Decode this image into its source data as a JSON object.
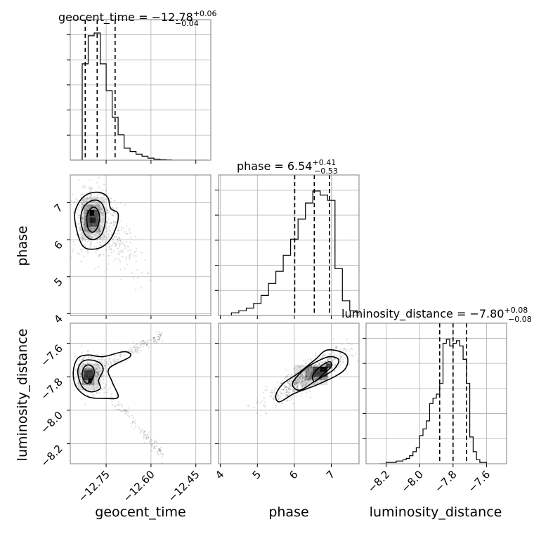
{
  "chart_data": {
    "type": "corner",
    "parameters": [
      "geocent_time",
      "phase",
      "luminosity_distance"
    ],
    "titles": [
      {
        "param": "geocent_time",
        "prefix": "geocent_time = −12.78",
        "upper": "+0.06",
        "lower": "−0.04"
      },
      {
        "param": "phase",
        "prefix": "phase = 6.54",
        "upper": "+0.41",
        "lower": "−0.53"
      },
      {
        "param": "luminosity_distance",
        "prefix": "luminosity_distance = −7.80",
        "upper": "+0.08",
        "lower": "−0.08"
      }
    ],
    "axis_labels": {
      "geocent_time": "geocent_time",
      "phase": "phase",
      "luminosity_distance": "luminosity_distance"
    },
    "ranges": {
      "geocent_time": [
        -12.87,
        -12.4
      ],
      "phase": [
        3.95,
        7.75
      ],
      "luminosity_distance": [
        -8.32,
        -7.48
      ]
    },
    "ticks": {
      "geocent_time": {
        "values": [
          -12.75,
          -12.6,
          -12.45
        ],
        "labels": [
          "−12.75",
          "−12.60",
          "−12.45"
        ]
      },
      "phase": {
        "values": [
          4,
          5,
          6,
          7
        ],
        "labels": [
          "4",
          "5",
          "6",
          "7"
        ]
      },
      "luminosity_distance": {
        "values": [
          -8.2,
          -8.0,
          -7.8,
          -7.6
        ],
        "labels": [
          "−8.2",
          "−8.0",
          "−7.8",
          "−7.6"
        ]
      }
    },
    "quantiles": {
      "geocent_time": [
        -12.82,
        -12.78,
        -12.72
      ],
      "phase": [
        6.01,
        6.54,
        6.95
      ],
      "luminosity_distance": [
        -7.88,
        -7.8,
        -7.72
      ]
    },
    "hist_1d": {
      "geocent_time": {
        "edges": [
          -12.87,
          -12.85,
          -12.83,
          -12.81,
          -12.79,
          -12.77,
          -12.75,
          -12.73,
          -12.71,
          -12.69,
          -12.67,
          -12.65,
          -12.63,
          -12.61,
          -12.59,
          -12.57,
          -12.55,
          -12.53,
          -12.51,
          -12.49,
          -12.47,
          -12.45,
          -12.43,
          -12.41
        ],
        "counts": [
          0,
          0,
          0.72,
          0.93,
          0.95,
          0.72,
          0.52,
          0.32,
          0.19,
          0.09,
          0.065,
          0.045,
          0.03,
          0.015,
          0.008,
          0.004,
          0.002,
          0,
          0,
          0,
          0,
          0,
          0
        ]
      },
      "phase": {
        "edges": [
          4.3,
          4.5,
          4.7,
          4.9,
          5.1,
          5.3,
          5.5,
          5.7,
          5.9,
          6.1,
          6.3,
          6.5,
          6.7,
          6.9,
          7.1,
          7.3,
          7.5,
          7.7
        ],
        "counts": [
          0.02,
          0.035,
          0.055,
          0.09,
          0.15,
          0.24,
          0.33,
          0.45,
          0.57,
          0.72,
          0.84,
          0.93,
          0.9,
          0.86,
          0.35,
          0.11,
          0.035
        ]
      },
      "luminosity_distance": {
        "edges": [
          -8.24,
          -8.22,
          -8.2,
          -8.18,
          -8.16,
          -8.14,
          -8.12,
          -8.1,
          -8.08,
          -8.06,
          -8.04,
          -8.02,
          -8.0,
          -7.98,
          -7.96,
          -7.94,
          -7.92,
          -7.9,
          -7.88,
          -7.86,
          -7.84,
          -7.82,
          -7.8,
          -7.78,
          -7.76,
          -7.74,
          -7.72,
          -7.7,
          -7.68,
          -7.66,
          -7.64,
          -7.62,
          -7.6
        ],
        "counts": [
          0,
          0,
          0.01,
          0.01,
          0.01,
          0.02,
          0.02,
          0.03,
          0.04,
          0.06,
          0.09,
          0.12,
          0.21,
          0.26,
          0.32,
          0.45,
          0.49,
          0.52,
          0.6,
          0.9,
          0.93,
          0.88,
          0.9,
          0.92,
          0.88,
          0.78,
          0.6,
          0.2,
          0.09,
          0.03,
          0.01,
          0.01
        ]
      }
    },
    "hist_2d": {
      "geocent_time_vs_phase": {
        "center": [
          -12.795,
          6.55
        ],
        "contours": [
          [
            [
              -12.815,
              6.58
            ],
            [
              -12.808,
              6.78
            ],
            [
              -12.792,
              6.88
            ],
            [
              -12.778,
              6.8
            ],
            [
              -12.772,
              6.58
            ],
            [
              -12.78,
              6.32
            ],
            [
              -12.795,
              6.2
            ],
            [
              -12.81,
              6.3
            ]
          ],
          [
            [
              -12.835,
              6.55
            ],
            [
              -12.825,
              6.88
            ],
            [
              -12.8,
              7.05
            ],
            [
              -12.775,
              7.05
            ],
            [
              -12.758,
              6.88
            ],
            [
              -12.752,
              6.55
            ],
            [
              -12.765,
              6.15
            ],
            [
              -12.795,
              6.0
            ],
            [
              -12.822,
              6.15
            ]
          ],
          [
            [
              -12.855,
              6.55
            ],
            [
              -12.845,
              6.95
            ],
            [
              -12.815,
              7.22
            ],
            [
              -12.775,
              7.28
            ],
            [
              -12.745,
              7.15
            ],
            [
              -12.735,
              6.85
            ],
            [
              -12.71,
              6.7
            ],
            [
              -12.718,
              6.3
            ],
            [
              -12.745,
              5.92
            ],
            [
              -12.785,
              5.75
            ],
            [
              -12.83,
              5.85
            ]
          ]
        ]
      },
      "geocent_time_vs_luminosity_distance": {
        "contours": [
          [
            [
              -12.83,
              -7.78
            ],
            [
              -12.822,
              -7.74
            ],
            [
              -12.805,
              -7.73
            ],
            [
              -12.79,
              -7.76
            ],
            [
              -12.795,
              -7.81
            ],
            [
              -12.812,
              -7.84
            ],
            [
              -12.825,
              -7.82
            ]
          ],
          [
            [
              -12.845,
              -7.77
            ],
            [
              -12.83,
              -7.71
            ],
            [
              -12.8,
              -7.7
            ],
            [
              -12.77,
              -7.72
            ],
            [
              -12.76,
              -7.76
            ],
            [
              -12.775,
              -7.82
            ],
            [
              -12.77,
              -7.87
            ],
            [
              -12.8,
              -7.89
            ],
            [
              -12.83,
              -7.86
            ]
          ],
          [
            [
              -12.86,
              -7.77
            ],
            [
              -12.845,
              -7.69
            ],
            [
              -12.81,
              -7.67
            ],
            [
              -12.76,
              -7.68
            ],
            [
              -12.69,
              -7.65
            ],
            [
              -12.67,
              -7.68
            ],
            [
              -12.74,
              -7.75
            ],
            [
              -12.73,
              -7.83
            ],
            [
              -12.71,
              -7.92
            ],
            [
              -12.75,
              -7.93
            ],
            [
              -12.81,
              -7.92
            ],
            [
              -12.85,
              -7.86
            ]
          ]
        ]
      },
      "phase_vs_luminosity_distance": {
        "contours": [
          [
            [
              6.5,
              -7.79
            ],
            [
              6.7,
              -7.74
            ],
            [
              6.95,
              -7.71
            ],
            [
              7.0,
              -7.74
            ],
            [
              6.75,
              -7.79
            ],
            [
              6.55,
              -7.83
            ]
          ],
          [
            [
              5.95,
              -7.84
            ],
            [
              6.25,
              -7.76
            ],
            [
              6.6,
              -7.71
            ],
            [
              6.95,
              -7.68
            ],
            [
              7.2,
              -7.7
            ],
            [
              7.05,
              -7.76
            ],
            [
              6.6,
              -7.82
            ],
            [
              6.15,
              -7.88
            ]
          ],
          [
            [
              5.5,
              -7.91
            ],
            [
              5.7,
              -7.84
            ],
            [
              6.1,
              -7.78
            ],
            [
              6.55,
              -7.7
            ],
            [
              6.9,
              -7.64
            ],
            [
              7.4,
              -7.67
            ],
            [
              7.35,
              -7.76
            ],
            [
              6.7,
              -7.84
            ],
            [
              6.0,
              -7.9
            ],
            [
              5.6,
              -7.95
            ]
          ]
        ]
      }
    }
  }
}
